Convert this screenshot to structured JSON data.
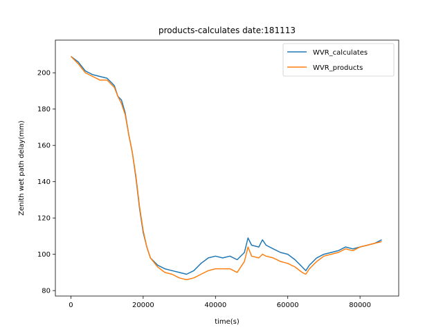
{
  "chart_data": {
    "type": "line",
    "title": "products-calculates date:181113",
    "xlabel": "time(s)",
    "ylabel": "Zenith wet path delay(mm)",
    "xlim": [
      -4300,
      90700
    ],
    "ylim": [
      77,
      218
    ],
    "xticks": [
      0,
      20000,
      40000,
      60000,
      80000
    ],
    "xtick_labels": [
      "0",
      "20000",
      "40000",
      "60000",
      "80000"
    ],
    "yticks": [
      80,
      100,
      120,
      140,
      160,
      180,
      200
    ],
    "ytick_labels": [
      "80",
      "100",
      "120",
      "140",
      "160",
      "180",
      "200"
    ],
    "grid": false,
    "legend_position": "top-right",
    "x": [
      0,
      2000,
      4000,
      6000,
      8000,
      10000,
      12000,
      13000,
      14000,
      15000,
      16000,
      17000,
      18000,
      19000,
      20000,
      21000,
      22000,
      24000,
      26000,
      28000,
      30000,
      32000,
      34000,
      36000,
      38000,
      40000,
      42000,
      44000,
      46000,
      48000,
      49000,
      50000,
      52000,
      53000,
      54000,
      56000,
      58000,
      60000,
      62000,
      64000,
      65000,
      66000,
      68000,
      70000,
      72000,
      74000,
      76000,
      78000,
      80000,
      82000,
      84000,
      86000
    ],
    "series": [
      {
        "name": "WVR_calculates",
        "color": "#1f77b4",
        "values": [
          209,
          206,
          201,
          199,
          198,
          197,
          193,
          187,
          185,
          178,
          166,
          156,
          142,
          125,
          112,
          104,
          98,
          94,
          92,
          91,
          90,
          89,
          91,
          95,
          98,
          99,
          98,
          99,
          97,
          101,
          109,
          105,
          104,
          108,
          105,
          103,
          101,
          100,
          97,
          93,
          91,
          94,
          98,
          100,
          101,
          102,
          104,
          103,
          104,
          105,
          106,
          108
        ]
      },
      {
        "name": "WVR_products",
        "color": "#ff7f0e",
        "values": [
          209,
          205,
          200,
          198,
          196,
          196,
          192,
          187,
          183,
          177,
          166,
          156,
          143,
          126,
          113,
          104,
          98,
          93,
          90,
          89,
          87,
          86,
          87,
          89,
          91,
          92,
          92,
          92,
          90,
          96,
          104,
          99,
          98,
          100,
          99,
          98,
          96,
          95,
          93,
          90,
          89,
          92,
          96,
          99,
          100,
          101,
          103,
          102,
          104,
          105,
          106,
          107
        ]
      }
    ]
  }
}
